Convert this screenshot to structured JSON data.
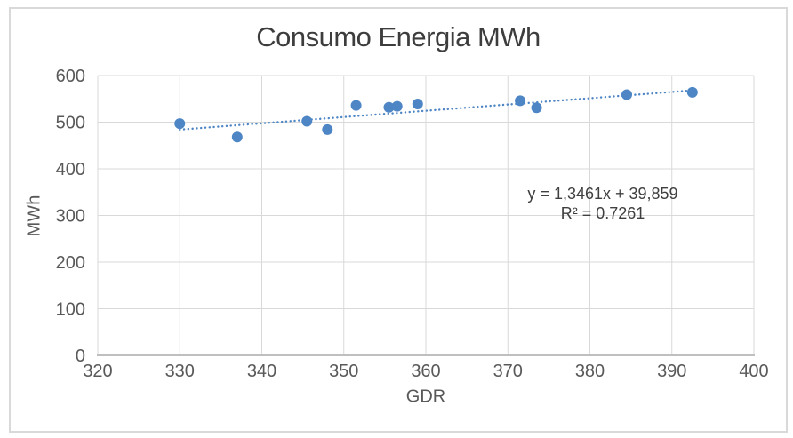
{
  "chart_data": {
    "type": "scatter",
    "title": "Consumo Energia MWh",
    "xlabel": "GDR",
    "ylabel": "MWh",
    "xlim": [
      320,
      400
    ],
    "ylim": [
      0,
      600
    ],
    "x_ticks": [
      320,
      330,
      340,
      350,
      360,
      370,
      380,
      390,
      400
    ],
    "y_ticks": [
      0,
      100,
      200,
      300,
      400,
      500,
      600
    ],
    "grid": true,
    "legend": "none",
    "points": [
      {
        "x": 330.0,
        "y": 497
      },
      {
        "x": 337.0,
        "y": 468
      },
      {
        "x": 345.5,
        "y": 502
      },
      {
        "x": 348.0,
        "y": 484
      },
      {
        "x": 351.5,
        "y": 536
      },
      {
        "x": 355.5,
        "y": 532
      },
      {
        "x": 356.5,
        "y": 534
      },
      {
        "x": 359.0,
        "y": 539
      },
      {
        "x": 371.5,
        "y": 546
      },
      {
        "x": 373.5,
        "y": 531
      },
      {
        "x": 384.5,
        "y": 559
      },
      {
        "x": 392.5,
        "y": 564
      }
    ],
    "trendline": {
      "slope": 1.3461,
      "intercept": 39.859,
      "x_start": 330,
      "x_end": 392.5,
      "style": "dotted"
    },
    "annotation": {
      "equation": "y = 1,3461x + 39,859",
      "r_squared": "R² = 0.7261"
    },
    "colors": {
      "marker": "#4D85C5",
      "trendline": "#4D85C5",
      "gridline": "#D9D9D9",
      "axis_line": "#BFBFBF",
      "tick_label": "#595959",
      "title": "#3d3d3d",
      "annotation_text": "#3f3f3f",
      "frame_border": "#D9D9D9"
    }
  }
}
